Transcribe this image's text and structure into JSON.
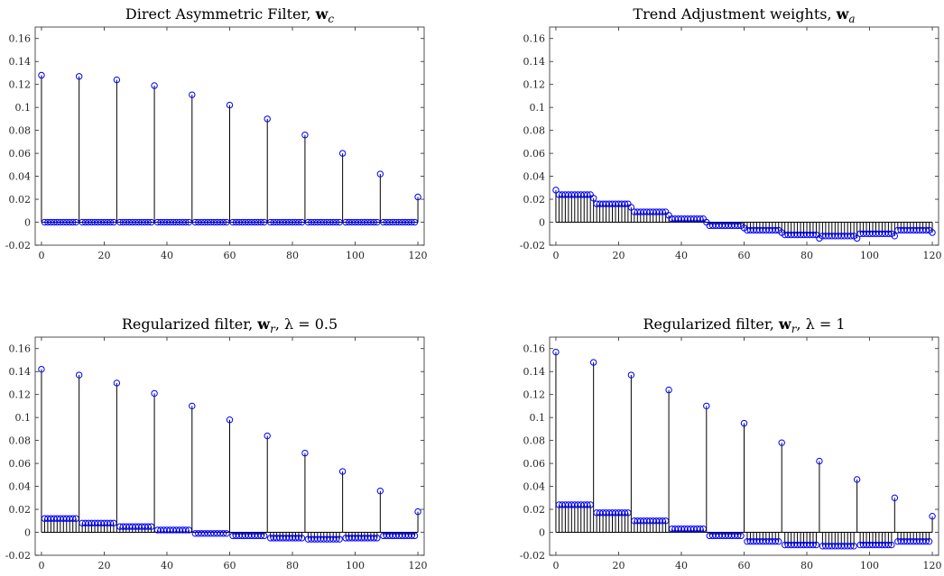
{
  "figure": {
    "colors": {
      "stem": "#000000",
      "marker": "#0000ff",
      "axis": "#262626",
      "baseline": "#000000"
    }
  },
  "chart_data": [
    {
      "type": "stem",
      "title_prefix": "Direct Asymmetric Filter, ",
      "title_symbol": "w",
      "title_subscript": "c",
      "title_suffix": "",
      "xlim": [
        -2,
        122
      ],
      "ylim": [
        -0.02,
        0.17
      ],
      "xticks": [
        0,
        20,
        40,
        60,
        80,
        100,
        120
      ],
      "yticks": [
        -0.02,
        0,
        0.02,
        0.04,
        0.06,
        0.08,
        0.1,
        0.12,
        0.14,
        0.16
      ],
      "ytick_labels": [
        "-0.02",
        "0",
        "0.02",
        "0.04",
        "0.06",
        "0.08",
        "0.1",
        "0.12",
        "0.14",
        "0.16"
      ],
      "x_start": 0,
      "values": [
        0.128,
        0,
        0,
        0,
        0,
        0,
        0,
        0,
        0,
        0,
        0,
        0,
        0.127,
        0,
        0,
        0,
        0,
        0,
        0,
        0,
        0,
        0,
        0,
        0,
        0.124,
        0,
        0,
        0,
        0,
        0,
        0,
        0,
        0,
        0,
        0,
        0,
        0.119,
        0,
        0,
        0,
        0,
        0,
        0,
        0,
        0,
        0,
        0,
        0,
        0.111,
        0,
        0,
        0,
        0,
        0,
        0,
        0,
        0,
        0,
        0,
        0,
        0.102,
        0,
        0,
        0,
        0,
        0,
        0,
        0,
        0,
        0,
        0,
        0,
        0.09,
        0,
        0,
        0,
        0,
        0,
        0,
        0,
        0,
        0,
        0,
        0,
        0.076,
        0,
        0,
        0,
        0,
        0,
        0,
        0,
        0,
        0,
        0,
        0,
        0.06,
        0,
        0,
        0,
        0,
        0,
        0,
        0,
        0,
        0,
        0,
        0,
        0.042,
        0,
        0,
        0,
        0,
        0,
        0,
        0,
        0,
        0,
        0,
        0,
        0.022
      ]
    },
    {
      "type": "stem",
      "title_prefix": "Trend Adjustment weights, ",
      "title_symbol": "w",
      "title_subscript": "a",
      "title_suffix": "",
      "xlim": [
        -2,
        122
      ],
      "ylim": [
        -0.02,
        0.17
      ],
      "xticks": [
        0,
        20,
        40,
        60,
        80,
        100,
        120
      ],
      "yticks": [
        -0.02,
        0,
        0.02,
        0.04,
        0.06,
        0.08,
        0.1,
        0.12,
        0.14,
        0.16
      ],
      "ytick_labels": [
        "-0.02",
        "0",
        "0.02",
        "0.04",
        "0.06",
        "0.08",
        "0.1",
        "0.12",
        "0.14",
        "0.16"
      ],
      "x_start": 0,
      "values": [
        0.028,
        0.024,
        0.024,
        0.024,
        0.024,
        0.024,
        0.024,
        0.024,
        0.024,
        0.024,
        0.024,
        0.024,
        0.021,
        0.016,
        0.016,
        0.016,
        0.016,
        0.016,
        0.016,
        0.016,
        0.016,
        0.016,
        0.016,
        0.016,
        0.013,
        0.009,
        0.009,
        0.009,
        0.009,
        0.009,
        0.009,
        0.009,
        0.009,
        0.009,
        0.009,
        0.009,
        0.006,
        0.003,
        0.003,
        0.003,
        0.003,
        0.003,
        0.003,
        0.003,
        0.003,
        0.003,
        0.003,
        0.003,
        0.0,
        -0.003,
        -0.003,
        -0.003,
        -0.003,
        -0.003,
        -0.003,
        -0.003,
        -0.003,
        -0.003,
        -0.003,
        -0.003,
        -0.005,
        -0.007,
        -0.007,
        -0.007,
        -0.007,
        -0.007,
        -0.007,
        -0.007,
        -0.007,
        -0.007,
        -0.007,
        -0.007,
        -0.009,
        -0.011,
        -0.011,
        -0.011,
        -0.011,
        -0.011,
        -0.011,
        -0.011,
        -0.011,
        -0.011,
        -0.011,
        -0.011,
        -0.014,
        -0.012,
        -0.012,
        -0.012,
        -0.012,
        -0.012,
        -0.012,
        -0.012,
        -0.012,
        -0.012,
        -0.012,
        -0.012,
        -0.014,
        -0.01,
        -0.01,
        -0.01,
        -0.01,
        -0.01,
        -0.01,
        -0.01,
        -0.01,
        -0.01,
        -0.01,
        -0.01,
        -0.012,
        -0.007,
        -0.007,
        -0.007,
        -0.007,
        -0.007,
        -0.007,
        -0.007,
        -0.007,
        -0.007,
        -0.007,
        -0.007,
        -0.009
      ]
    },
    {
      "type": "stem",
      "title_prefix": "Regularized filter, ",
      "title_symbol": "w",
      "title_subscript": "r",
      "title_suffix": ", λ = 0.5",
      "xlim": [
        -2,
        122
      ],
      "ylim": [
        -0.02,
        0.17
      ],
      "xticks": [
        0,
        20,
        40,
        60,
        80,
        100,
        120
      ],
      "yticks": [
        -0.02,
        0,
        0.02,
        0.04,
        0.06,
        0.08,
        0.1,
        0.12,
        0.14,
        0.16
      ],
      "ytick_labels": [
        "-0.02",
        "0",
        "0.02",
        "0.04",
        "0.06",
        "0.08",
        "0.1",
        "0.12",
        "0.14",
        "0.16"
      ],
      "x_start": 0,
      "values": [
        0.142,
        0.012,
        0.012,
        0.012,
        0.012,
        0.012,
        0.012,
        0.012,
        0.012,
        0.012,
        0.012,
        0.012,
        0.137,
        0.008,
        0.008,
        0.008,
        0.008,
        0.008,
        0.008,
        0.008,
        0.008,
        0.008,
        0.008,
        0.008,
        0.13,
        0.005,
        0.005,
        0.005,
        0.005,
        0.005,
        0.005,
        0.005,
        0.005,
        0.005,
        0.005,
        0.005,
        0.121,
        0.002,
        0.002,
        0.002,
        0.002,
        0.002,
        0.002,
        0.002,
        0.002,
        0.002,
        0.002,
        0.002,
        0.11,
        -0.001,
        -0.001,
        -0.001,
        -0.001,
        -0.001,
        -0.001,
        -0.001,
        -0.001,
        -0.001,
        -0.001,
        -0.001,
        0.098,
        -0.003,
        -0.003,
        -0.003,
        -0.003,
        -0.003,
        -0.003,
        -0.003,
        -0.003,
        -0.003,
        -0.003,
        -0.003,
        0.084,
        -0.005,
        -0.005,
        -0.005,
        -0.005,
        -0.005,
        -0.005,
        -0.005,
        -0.005,
        -0.005,
        -0.005,
        -0.005,
        0.069,
        -0.006,
        -0.006,
        -0.006,
        -0.006,
        -0.006,
        -0.006,
        -0.006,
        -0.006,
        -0.006,
        -0.006,
        -0.006,
        0.053,
        -0.005,
        -0.005,
        -0.005,
        -0.005,
        -0.005,
        -0.005,
        -0.005,
        -0.005,
        -0.005,
        -0.005,
        -0.005,
        0.036,
        -0.003,
        -0.003,
        -0.003,
        -0.003,
        -0.003,
        -0.003,
        -0.003,
        -0.003,
        -0.003,
        -0.003,
        -0.003,
        0.018
      ]
    },
    {
      "type": "stem",
      "title_prefix": "Regularized filter, ",
      "title_symbol": "w",
      "title_subscript": "r",
      "title_suffix": ", λ = 1",
      "xlim": [
        -2,
        122
      ],
      "ylim": [
        -0.02,
        0.17
      ],
      "xticks": [
        0,
        20,
        40,
        60,
        80,
        100,
        120
      ],
      "yticks": [
        -0.02,
        0,
        0.02,
        0.04,
        0.06,
        0.08,
        0.1,
        0.12,
        0.14,
        0.16
      ],
      "ytick_labels": [
        "-0.02",
        "0",
        "0.02",
        "0.04",
        "0.06",
        "0.08",
        "0.1",
        "0.12",
        "0.14",
        "0.16"
      ],
      "x_start": 0,
      "values": [
        0.157,
        0.024,
        0.024,
        0.024,
        0.024,
        0.024,
        0.024,
        0.024,
        0.024,
        0.024,
        0.024,
        0.024,
        0.148,
        0.017,
        0.017,
        0.017,
        0.017,
        0.017,
        0.017,
        0.017,
        0.017,
        0.017,
        0.017,
        0.017,
        0.137,
        0.01,
        0.01,
        0.01,
        0.01,
        0.01,
        0.01,
        0.01,
        0.01,
        0.01,
        0.01,
        0.01,
        0.124,
        0.003,
        0.003,
        0.003,
        0.003,
        0.003,
        0.003,
        0.003,
        0.003,
        0.003,
        0.003,
        0.003,
        0.11,
        -0.003,
        -0.003,
        -0.003,
        -0.003,
        -0.003,
        -0.003,
        -0.003,
        -0.003,
        -0.003,
        -0.003,
        -0.003,
        0.095,
        -0.008,
        -0.008,
        -0.008,
        -0.008,
        -0.008,
        -0.008,
        -0.008,
        -0.008,
        -0.008,
        -0.008,
        -0.008,
        0.078,
        -0.011,
        -0.011,
        -0.011,
        -0.011,
        -0.011,
        -0.011,
        -0.011,
        -0.011,
        -0.011,
        -0.011,
        -0.011,
        0.062,
        -0.012,
        -0.012,
        -0.012,
        -0.012,
        -0.012,
        -0.012,
        -0.012,
        -0.012,
        -0.012,
        -0.012,
        -0.012,
        0.046,
        -0.011,
        -0.011,
        -0.011,
        -0.011,
        -0.011,
        -0.011,
        -0.011,
        -0.011,
        -0.011,
        -0.011,
        -0.011,
        0.03,
        -0.008,
        -0.008,
        -0.008,
        -0.008,
        -0.008,
        -0.008,
        -0.008,
        -0.008,
        -0.008,
        -0.008,
        -0.008,
        0.014
      ]
    }
  ]
}
